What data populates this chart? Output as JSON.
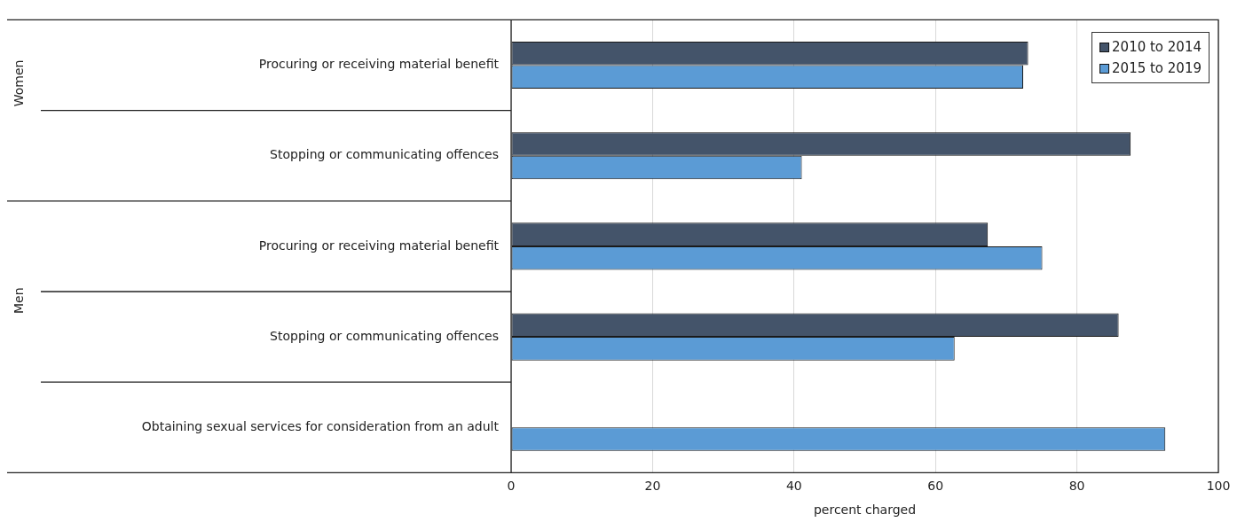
{
  "chart_data": {
    "type": "bar",
    "orientation": "horizontal",
    "xlabel": "percent charged",
    "categories": [
      "Procuring or receiving material benefit",
      "Stopping or communicating offences",
      "Procuring or receiving material benefit",
      "Stopping or communicating offences",
      "Obtaining sexual services for consideration from an adult"
    ],
    "series": [
      {
        "name": "2010 to 2014",
        "color": "#44546a",
        "values": [
          73.1,
          87.6,
          67.4,
          85.9,
          null
        ]
      },
      {
        "name": "2015 to 2019",
        "color": "#5b9bd5",
        "values": [
          72.4,
          41.1,
          75.1,
          62.7,
          92.5
        ]
      }
    ],
    "xlim": [
      0,
      100
    ],
    "xticks": [
      0,
      20,
      40,
      60,
      80,
      100
    ],
    "grid": "x",
    "legend": "top right",
    "annotations": [
      "Women",
      "Men"
    ]
  }
}
